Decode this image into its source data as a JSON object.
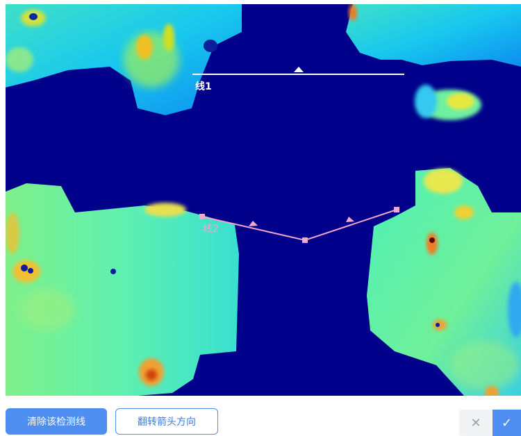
{
  "lines": [
    {
      "label": "线1",
      "color": "#ffffff"
    },
    {
      "label": "线2",
      "color": "#f2a7cc"
    }
  ],
  "toolbar": {
    "clear_label": "清除该检测线",
    "flip_label": "翻转箭头方向",
    "cancel_icon": "close-icon",
    "confirm_icon": "check-icon"
  },
  "colors": {
    "accent": "#4d8ef0",
    "heatmap_background": "#00008b"
  }
}
